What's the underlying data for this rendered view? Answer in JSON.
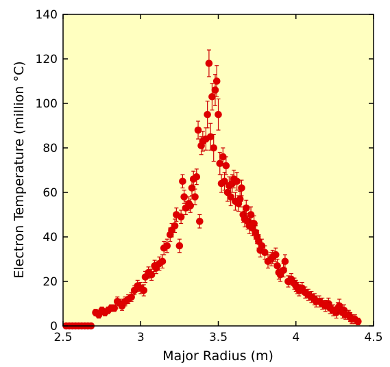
{
  "chart_data": {
    "type": "scatter",
    "title": "",
    "xlabel": "Major Radius (m)",
    "ylabel": "Electron Temperature (million °C)",
    "xlim": [
      2.5,
      4.5
    ],
    "ylim": [
      0,
      140
    ],
    "xticks": [
      2.5,
      3,
      3.5,
      4,
      4.5
    ],
    "xtick_labels": [
      "2.5",
      "3",
      "3.5",
      "4",
      "4.5"
    ],
    "yticks": [
      0,
      20,
      40,
      60,
      80,
      100,
      120,
      140
    ],
    "ytick_labels": [
      "0",
      "20",
      "40",
      "60",
      "80",
      "100",
      "120",
      "140"
    ],
    "grid": false,
    "colors": {
      "background": "#ffffc0",
      "marker": "#dd0000",
      "errorbar": "#cc0000",
      "axes": "#000000"
    },
    "series": [
      {
        "points": [
          [
            2.52,
            0,
            0
          ],
          [
            2.54,
            0,
            0
          ],
          [
            2.56,
            0,
            0
          ],
          [
            2.58,
            0,
            0
          ],
          [
            2.6,
            0,
            0
          ],
          [
            2.62,
            0,
            0
          ],
          [
            2.64,
            0,
            0
          ],
          [
            2.66,
            0,
            0
          ],
          [
            2.68,
            0,
            0
          ],
          [
            2.71,
            6,
            1.5
          ],
          [
            2.73,
            5,
            1.5
          ],
          [
            2.75,
            7,
            1.5
          ],
          [
            2.77,
            6,
            1.5
          ],
          [
            2.79,
            7,
            1.5
          ],
          [
            2.81,
            8,
            1.5
          ],
          [
            2.83,
            8,
            1.5
          ],
          [
            2.85,
            11,
            2
          ],
          [
            2.87,
            10,
            2
          ],
          [
            2.88,
            9,
            2
          ],
          [
            2.9,
            11,
            2
          ],
          [
            2.92,
            12,
            2
          ],
          [
            2.94,
            13,
            2
          ],
          [
            2.96,
            16,
            2
          ],
          [
            2.98,
            18,
            2.5
          ],
          [
            3.0,
            17,
            2.5
          ],
          [
            3.02,
            16,
            2.5
          ],
          [
            3.03,
            22,
            2.5
          ],
          [
            3.05,
            24,
            2.5
          ],
          [
            3.07,
            23,
            2.5
          ],
          [
            3.09,
            27,
            2.5
          ],
          [
            3.1,
            26,
            2.5
          ],
          [
            3.12,
            28,
            3
          ],
          [
            3.14,
            29,
            3
          ],
          [
            3.15,
            35,
            3
          ],
          [
            3.17,
            36,
            3
          ],
          [
            3.19,
            41,
            3
          ],
          [
            3.2,
            43,
            3
          ],
          [
            3.22,
            45,
            3
          ],
          [
            3.23,
            50,
            3
          ],
          [
            3.25,
            36,
            3
          ],
          [
            3.26,
            49,
            3
          ],
          [
            3.27,
            65,
            3
          ],
          [
            3.28,
            58,
            3
          ],
          [
            3.29,
            53,
            3
          ],
          [
            3.31,
            55,
            3
          ],
          [
            3.32,
            54,
            3
          ],
          [
            3.33,
            62,
            3.5
          ],
          [
            3.34,
            66,
            3.5
          ],
          [
            3.35,
            58,
            3.5
          ],
          [
            3.36,
            67,
            3.5
          ],
          [
            3.37,
            88,
            4
          ],
          [
            3.38,
            47,
            3
          ],
          [
            3.39,
            81,
            4
          ],
          [
            3.4,
            83,
            4.5
          ],
          [
            3.42,
            84,
            5
          ],
          [
            3.43,
            95,
            6
          ],
          [
            3.44,
            118,
            6
          ],
          [
            3.45,
            85,
            6
          ],
          [
            3.46,
            103,
            6
          ],
          [
            3.47,
            80,
            6
          ],
          [
            3.48,
            106,
            7
          ],
          [
            3.49,
            110,
            7
          ],
          [
            3.5,
            95,
            7
          ],
          [
            3.51,
            73,
            5
          ],
          [
            3.52,
            64,
            4
          ],
          [
            3.53,
            76,
            4
          ],
          [
            3.54,
            65,
            4
          ],
          [
            3.55,
            72,
            4
          ],
          [
            3.56,
            60,
            4
          ],
          [
            3.57,
            63,
            4
          ],
          [
            3.58,
            58,
            4
          ],
          [
            3.59,
            64,
            4
          ],
          [
            3.6,
            66,
            4
          ],
          [
            3.61,
            56,
            4
          ],
          [
            3.62,
            65,
            4
          ],
          [
            3.63,
            55,
            3.5
          ],
          [
            3.64,
            57,
            3.5
          ],
          [
            3.65,
            62,
            3.5
          ],
          [
            3.66,
            50,
            3.5
          ],
          [
            3.67,
            48,
            3.5
          ],
          [
            3.68,
            53,
            3.5
          ],
          [
            3.69,
            47,
            3.5
          ],
          [
            3.7,
            45,
            3.5
          ],
          [
            3.71,
            50,
            3.5
          ],
          [
            3.72,
            44,
            3.5
          ],
          [
            3.73,
            46,
            3.5
          ],
          [
            3.74,
            42,
            3
          ],
          [
            3.75,
            40,
            3
          ],
          [
            3.76,
            38,
            3
          ],
          [
            3.77,
            34,
            3
          ],
          [
            3.78,
            36,
            3
          ],
          [
            3.8,
            33,
            3
          ],
          [
            3.82,
            29,
            3
          ],
          [
            3.84,
            30,
            3
          ],
          [
            3.85,
            31,
            3
          ],
          [
            3.87,
            32,
            3
          ],
          [
            3.88,
            27,
            3
          ],
          [
            3.89,
            24,
            3
          ],
          [
            3.9,
            23,
            3
          ],
          [
            3.92,
            25,
            3
          ],
          [
            3.93,
            29,
            3
          ],
          [
            3.95,
            20,
            2.5
          ],
          [
            3.97,
            21,
            2.5
          ],
          [
            3.99,
            19,
            2.5
          ],
          [
            4.0,
            18,
            2.5
          ],
          [
            4.01,
            17,
            2.5
          ],
          [
            4.02,
            16,
            2.5
          ],
          [
            4.04,
            17,
            2.5
          ],
          [
            4.06,
            15,
            2.5
          ],
          [
            4.08,
            14,
            2.5
          ],
          [
            4.1,
            13,
            2.5
          ],
          [
            4.12,
            12,
            2.5
          ],
          [
            4.13,
            11,
            2.5
          ],
          [
            4.15,
            11,
            2.5
          ],
          [
            4.17,
            10,
            2.5
          ],
          [
            4.19,
            9,
            2.5
          ],
          [
            4.21,
            10,
            2.5
          ],
          [
            4.22,
            8,
            2.5
          ],
          [
            4.24,
            7,
            2.5
          ],
          [
            4.26,
            6,
            2.5
          ],
          [
            4.27,
            8,
            2.5
          ],
          [
            4.28,
            9,
            3
          ],
          [
            4.3,
            6,
            2.5
          ],
          [
            4.31,
            7,
            2.5
          ],
          [
            4.32,
            5,
            2
          ],
          [
            4.34,
            5,
            2
          ],
          [
            4.35,
            4,
            2
          ],
          [
            4.36,
            3,
            2
          ],
          [
            4.38,
            3,
            2
          ],
          [
            4.4,
            2,
            1.5
          ]
        ]
      }
    ]
  }
}
